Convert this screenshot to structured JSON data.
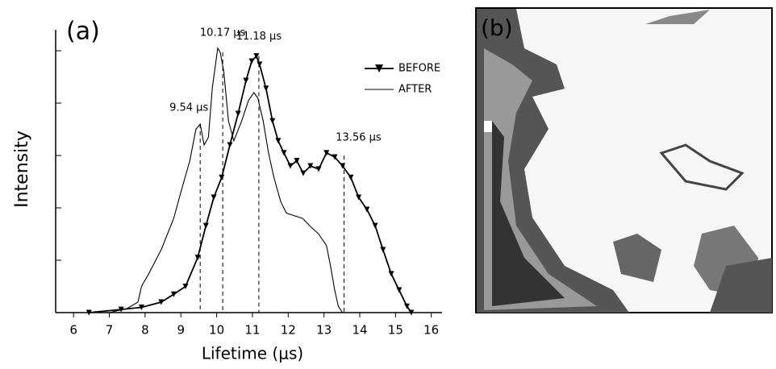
{
  "chart_data": {
    "type": "line",
    "panel_label": "(a)",
    "image_panel_label": "(b)",
    "x_label": "Lifetime (μs)",
    "y_label": "Intensity",
    "xlim": [
      5.5,
      16.3
    ],
    "xticks": [
      6,
      7,
      8,
      9,
      10,
      11,
      12,
      13,
      14,
      15,
      16
    ],
    "ylim": [
      0,
      5.4
    ],
    "yticks": [
      0,
      1,
      2,
      3,
      4,
      5
    ],
    "legend": "upper right",
    "series": [
      {
        "name": "BEFORE",
        "color": "#000000",
        "marker": "triangle-down",
        "x": [
          6.43,
          7.33,
          7.9,
          8.45,
          8.8,
          9.13,
          9.47,
          9.7,
          9.92,
          10.14,
          10.37,
          10.6,
          10.82,
          10.98,
          11.11,
          11.2,
          11.38,
          11.56,
          11.72,
          11.88,
          12.06,
          12.24,
          12.42,
          12.62,
          12.85,
          13.07,
          13.3,
          13.52,
          13.75,
          13.97,
          14.2,
          14.43,
          14.65,
          14.88,
          15.1,
          15.32,
          15.44
        ],
        "values": [
          0,
          0.06,
          0.1,
          0.2,
          0.35,
          0.5,
          1.05,
          1.66,
          2.2,
          2.58,
          3.2,
          3.8,
          4.43,
          4.8,
          4.9,
          4.74,
          4.28,
          3.66,
          3.28,
          3.05,
          2.8,
          2.9,
          2.66,
          2.8,
          2.74,
          3.05,
          2.97,
          2.8,
          2.58,
          2.2,
          1.97,
          1.66,
          1.2,
          0.74,
          0.43,
          0.12,
          0
        ]
      },
      {
        "name": "AFTER",
        "color": "#000000",
        "x": [
          7.0,
          7.5,
          7.8,
          7.9,
          8.1,
          8.45,
          8.8,
          9.0,
          9.25,
          9.42,
          9.54,
          9.65,
          9.77,
          9.88,
          10.03,
          10.1,
          10.2,
          10.33,
          10.48,
          10.7,
          10.89,
          11.04,
          11.15,
          11.3,
          11.45,
          11.6,
          11.79,
          11.95,
          12.17,
          12.4,
          12.6,
          12.85,
          13.07,
          13.18,
          13.3,
          13.4,
          13.52
        ],
        "values": [
          0,
          0.08,
          0.2,
          0.5,
          0.74,
          1.2,
          1.8,
          2.3,
          2.9,
          3.5,
          3.6,
          3.2,
          3.35,
          4.3,
          5.05,
          4.97,
          4.6,
          3.66,
          3.28,
          3.66,
          4.05,
          4.2,
          4.1,
          3.66,
          3.05,
          2.58,
          2.12,
          1.9,
          1.85,
          1.8,
          1.66,
          1.5,
          1.28,
          0.9,
          0.43,
          0.12,
          0
        ]
      }
    ],
    "annotations": [
      {
        "text": "9.54 μs",
        "x": 9.54,
        "y": 3.6
      },
      {
        "text": "10.17 μs",
        "x": 10.17,
        "y": 4.97
      },
      {
        "text": "11.18 μs",
        "x": 11.18,
        "y": 4.9
      },
      {
        "text": "13.56 μs",
        "x": 13.56,
        "y": 3.0
      }
    ]
  }
}
